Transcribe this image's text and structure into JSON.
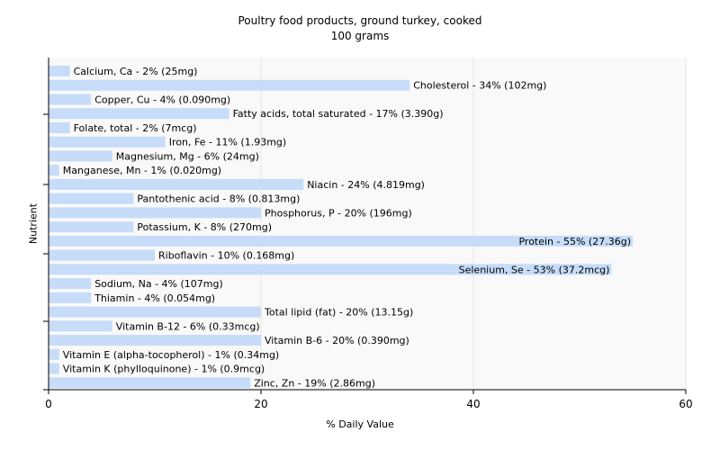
{
  "chart_data": {
    "type": "bar",
    "orientation": "horizontal",
    "title": "Poultry food products, ground turkey, cooked",
    "subtitle": "100 grams",
    "xlabel": "% Daily Value",
    "ylabel": "Nutrient",
    "xlim": [
      0,
      60
    ],
    "xticks": [
      0,
      20,
      40,
      60
    ],
    "grid": true,
    "colors": {
      "bar": "#c6dcf8",
      "plot_bg": "#f9f9f9",
      "grid": "#e5e5e5",
      "axis": "#000000"
    },
    "categories": [
      "Calcium, Ca - 2% (25mg)",
      "Cholesterol - 34% (102mg)",
      "Copper, Cu - 4% (0.090mg)",
      "Fatty acids, total saturated - 17% (3.390g)",
      "Folate, total - 2% (7mcg)",
      "Iron, Fe - 11% (1.93mg)",
      "Magnesium, Mg - 6% (24mg)",
      "Manganese, Mn - 1% (0.020mg)",
      "Niacin - 24% (4.819mg)",
      "Pantothenic acid - 8% (0.813mg)",
      "Phosphorus, P - 20% (196mg)",
      "Potassium, K - 8% (270mg)",
      "Protein - 55% (27.36g)",
      "Riboflavin - 10% (0.168mg)",
      "Selenium, Se - 53% (37.2mcg)",
      "Sodium, Na - 4% (107mg)",
      "Thiamin - 4% (0.054mg)",
      "Total lipid (fat) - 20% (13.15g)",
      "Vitamin B-12 - 6% (0.33mcg)",
      "Vitamin B-6 - 20% (0.390mg)",
      "Vitamin E (alpha-tocopherol) - 1% (0.34mg)",
      "Vitamin K (phylloquinone) - 1% (0.9mcg)",
      "Zinc, Zn - 19% (2.86mg)"
    ],
    "values": [
      2,
      34,
      4,
      17,
      2,
      11,
      6,
      1,
      24,
      8,
      20,
      8,
      55,
      10,
      53,
      4,
      4,
      20,
      6,
      20,
      1,
      1,
      19
    ]
  }
}
